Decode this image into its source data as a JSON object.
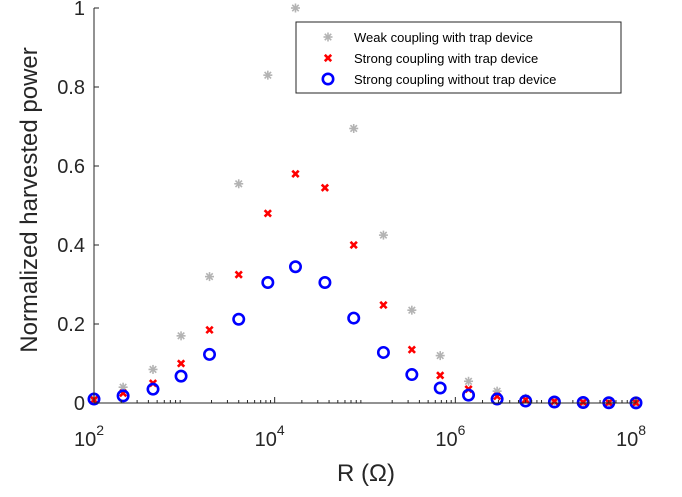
{
  "chart_data": {
    "type": "scatter",
    "title": "",
    "xlabel": "R (Ω)",
    "ylabel": "Normalized harvested power",
    "xscale": "log",
    "xlim": [
      100,
      100000000
    ],
    "ylim": [
      0,
      1
    ],
    "x_ticks": [
      {
        "value": 100,
        "base": "10",
        "exp": "2"
      },
      {
        "value": 10000,
        "base": "10",
        "exp": "4"
      },
      {
        "value": 1000000,
        "base": "10",
        "exp": "6"
      },
      {
        "value": 100000000,
        "base": "10",
        "exp": "8"
      }
    ],
    "y_ticks": [
      {
        "value": 0,
        "label": "0"
      },
      {
        "value": 0.2,
        "label": "0.2"
      },
      {
        "value": 0.4,
        "label": "0.4"
      },
      {
        "value": 0.6,
        "label": "0.6"
      },
      {
        "value": 0.8,
        "label": "0.8"
      },
      {
        "value": 1,
        "label": "1"
      }
    ],
    "grid": false,
    "legend": "top-right",
    "x": [
      100,
      210,
      450,
      920,
      1900,
      4000,
      8400,
      17000,
      36000,
      75000,
      160000,
      330000,
      680000,
      1400000,
      2900000,
      6000000,
      12500000,
      26000000,
      50000000,
      100000000
    ],
    "series": [
      {
        "name": "Weak coupling with trap device",
        "marker": "asterisk",
        "color": "#b3b3b3",
        "values": [
          0.01,
          0.04,
          0.085,
          0.17,
          0.32,
          0.555,
          0.83,
          1.0,
          null,
          0.695,
          0.425,
          0.235,
          0.12,
          0.055,
          0.03,
          0.012,
          0.005,
          0.002,
          0.001,
          0.0005
        ]
      },
      {
        "name": "Strong coupling with trap device",
        "marker": "x",
        "color": "#ff0000",
        "values": [
          0.008,
          0.025,
          0.05,
          0.1,
          0.185,
          0.325,
          0.48,
          0.58,
          0.545,
          0.4,
          0.248,
          0.135,
          0.07,
          0.035,
          0.017,
          0.008,
          0.004,
          0.002,
          0.001,
          0.0005
        ]
      },
      {
        "name": "Strong coupling without trap device",
        "marker": "circle",
        "color": "#0000ff",
        "values": [
          0.01,
          0.018,
          0.035,
          0.068,
          0.123,
          0.212,
          0.305,
          0.345,
          0.305,
          0.215,
          0.128,
          0.072,
          0.038,
          0.02,
          0.01,
          0.005,
          0.0025,
          0.0012,
          0.0006,
          0.0003
        ]
      }
    ]
  }
}
